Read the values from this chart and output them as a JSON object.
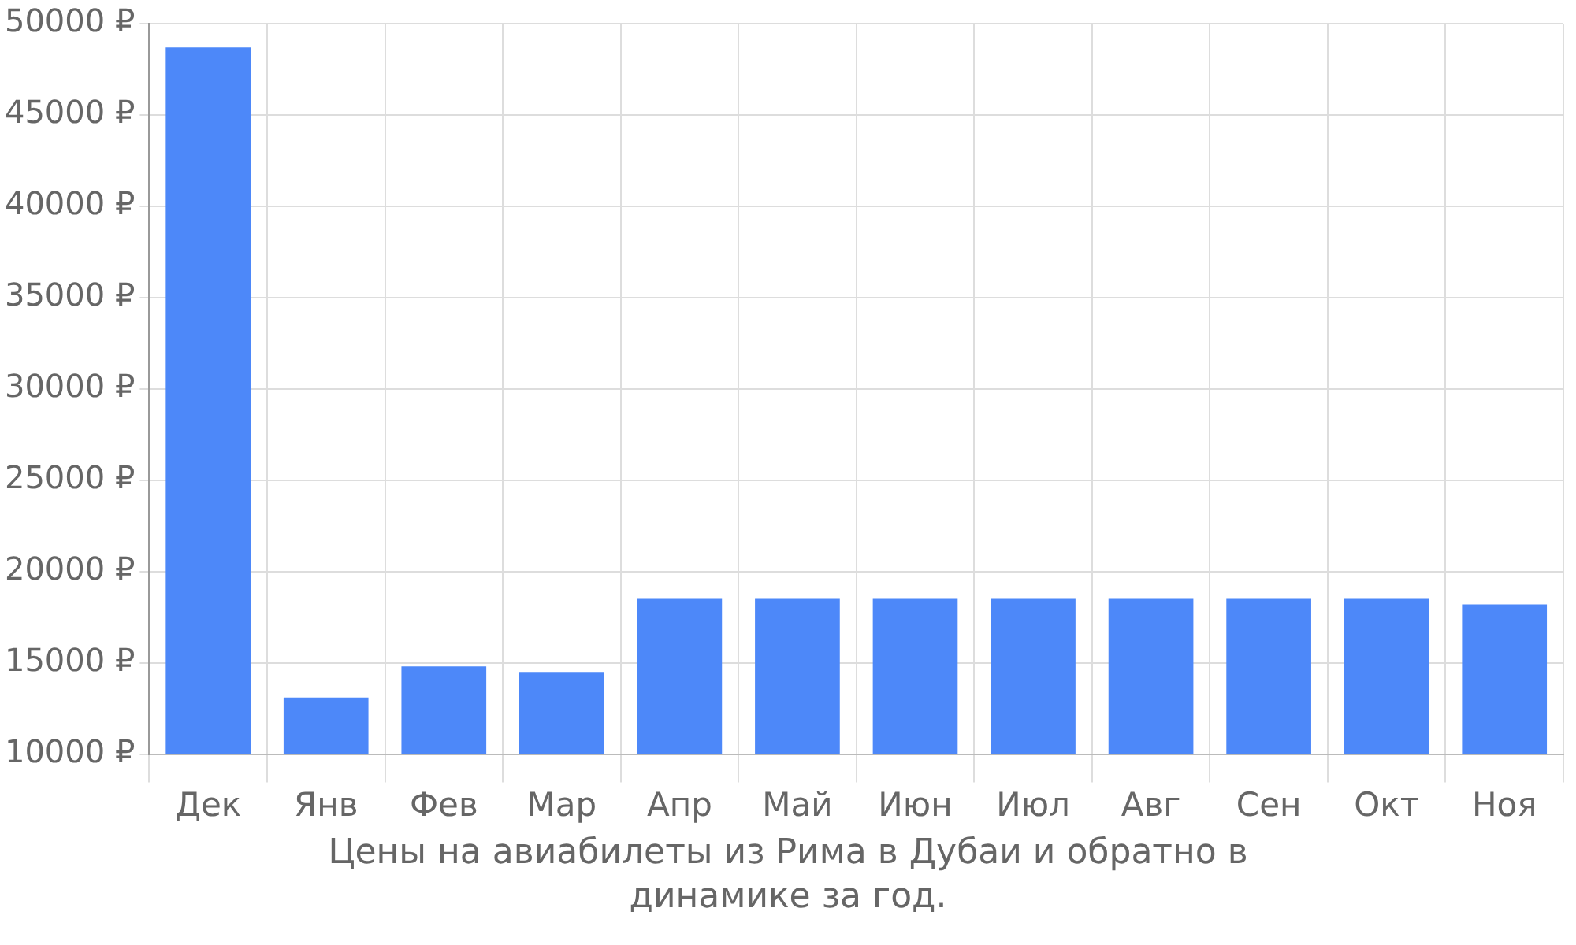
{
  "chart_data": {
    "type": "bar",
    "title": "Цены на авиабилеты из Рима в Дубаи и обратно в динамике за год.",
    "categories": [
      "Дек",
      "Янв",
      "Фев",
      "Мар",
      "Апр",
      "Май",
      "Июн",
      "Июл",
      "Авг",
      "Сен",
      "Окт",
      "Ноя"
    ],
    "values": [
      48700,
      13100,
      14800,
      14500,
      18500,
      18500,
      18500,
      18500,
      18500,
      18500,
      18500,
      18200
    ],
    "color": "#4d88f9",
    "ylim": [
      10000,
      50000
    ],
    "yticks": [
      {
        "value": 10000,
        "label": "10000 ₽"
      },
      {
        "value": 15000,
        "label": "15000 ₽"
      },
      {
        "value": 20000,
        "label": "20000 ₽"
      },
      {
        "value": 25000,
        "label": "25000 ₽"
      },
      {
        "value": 30000,
        "label": "30000 ₽"
      },
      {
        "value": 35000,
        "label": "35000 ₽"
      },
      {
        "value": 40000,
        "label": "40000 ₽"
      },
      {
        "value": 45000,
        "label": "45000 ₽"
      },
      {
        "value": 50000,
        "label": "50000 ₽"
      }
    ],
    "grid": true,
    "legend": false
  }
}
